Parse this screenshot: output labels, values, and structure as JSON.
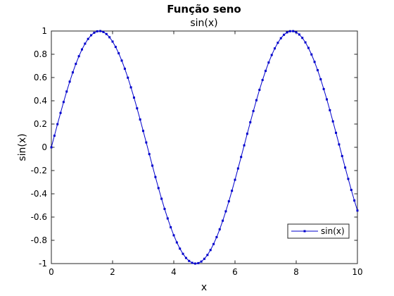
{
  "chart_data": {
    "type": "line",
    "title": "Função seno",
    "subtitle": "sin(x)",
    "xlabel": "x",
    "ylabel": "sin(x)",
    "xlim": [
      0,
      10
    ],
    "ylim": [
      -1,
      1
    ],
    "xticks": [
      0,
      2,
      4,
      6,
      8,
      10
    ],
    "xtick_labels": [
      "0",
      "2",
      "4",
      "6",
      "8",
      "10"
    ],
    "yticks": [
      -1,
      -0.8,
      -0.6,
      -0.4,
      -0.2,
      0,
      0.2,
      0.4,
      0.6,
      0.8,
      1
    ],
    "ytick_labels": [
      "-1",
      "-0.8",
      "-0.6",
      "-0.4",
      "-0.2",
      "0",
      "0.2",
      "0.4",
      "0.6",
      "0.8",
      "1"
    ],
    "grid": false,
    "legend_position": "bottom-right",
    "series": [
      {
        "name": "sin(x)",
        "color": "#0000cc",
        "marker": "point",
        "x": [
          0,
          0.1,
          0.2,
          0.3,
          0.4,
          0.5,
          0.6,
          0.7,
          0.8,
          0.9,
          1,
          1.1,
          1.2,
          1.3,
          1.4,
          1.5,
          1.6,
          1.7,
          1.8,
          1.9,
          2,
          2.1,
          2.2,
          2.3,
          2.4,
          2.5,
          2.6,
          2.7,
          2.8,
          2.9,
          3,
          3.1,
          3.2,
          3.3,
          3.4,
          3.5,
          3.6,
          3.7,
          3.8,
          3.9,
          4,
          4.1,
          4.2,
          4.3,
          4.4,
          4.5,
          4.6,
          4.7,
          4.8,
          4.9,
          5,
          5.1,
          5.2,
          5.3,
          5.4,
          5.5,
          5.6,
          5.7,
          5.8,
          5.9,
          6,
          6.1,
          6.2,
          6.3,
          6.4,
          6.5,
          6.6,
          6.7,
          6.8,
          6.9,
          7,
          7.1,
          7.2,
          7.3,
          7.4,
          7.5,
          7.6,
          7.7,
          7.8,
          7.9,
          8,
          8.1,
          8.2,
          8.3,
          8.4,
          8.5,
          8.6,
          8.7,
          8.8,
          8.9,
          9,
          9.1,
          9.2,
          9.3,
          9.4,
          9.5,
          9.6,
          9.7,
          9.8,
          9.9,
          10
        ],
        "y": [
          0,
          0.0998,
          0.1987,
          0.2955,
          0.3894,
          0.4794,
          0.5646,
          0.6442,
          0.7174,
          0.7833,
          0.8415,
          0.8912,
          0.932,
          0.9636,
          0.9854,
          0.9975,
          0.9996,
          0.9917,
          0.9738,
          0.9463,
          0.9093,
          0.8632,
          0.8085,
          0.7457,
          0.6755,
          0.5985,
          0.5155,
          0.4274,
          0.335,
          0.2392,
          0.1411,
          0.0416,
          -0.0584,
          -0.1577,
          -0.2555,
          -0.3508,
          -0.4425,
          -0.5298,
          -0.6119,
          -0.6878,
          -0.7568,
          -0.8183,
          -0.8716,
          -0.9162,
          -0.9516,
          -0.9775,
          -0.9937,
          -0.9999,
          -0.9962,
          -0.9825,
          -0.9589,
          -0.9258,
          -0.8835,
          -0.8323,
          -0.7728,
          -0.7055,
          -0.6313,
          -0.5507,
          -0.4646,
          -0.3739,
          -0.2794,
          -0.1822,
          -0.0831,
          0.0168,
          0.1165,
          0.2151,
          0.3115,
          0.4048,
          0.4941,
          0.5784,
          0.657,
          0.729,
          0.7937,
          0.8504,
          0.8987,
          0.938,
          0.9679,
          0.9882,
          0.9985,
          0.9989,
          0.9894,
          0.9699,
          0.9407,
          0.9022,
          0.8546,
          0.7985,
          0.7344,
          0.663,
          0.5849,
          0.501,
          0.4121,
          0.319,
          0.2229,
          0.1245,
          0.0248,
          -0.0752,
          -0.1743,
          -0.2718,
          -0.3665,
          -0.4575,
          -0.544
        ]
      }
    ]
  }
}
